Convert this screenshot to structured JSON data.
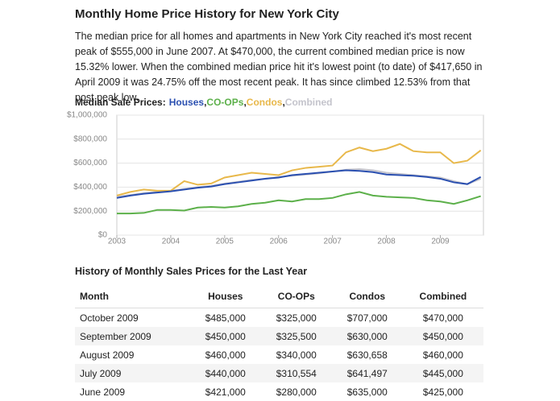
{
  "header": {
    "title": "Monthly Home Price History for New York City",
    "paragraph": "The median price for all homes and apartments in New York City reached it's most recent peak of $555,000 in June 2007. At $470,000, the current combined median price is now 15.32% lower. When the combined median price hit it's lowest point (to date) of $417,650 in April 2009 it was 24.75% off the most recent peak. It has since climbed 12.53% from that post peak low."
  },
  "chart_data": {
    "type": "line",
    "title": "Median Sale Prices:",
    "legend_separator": ",",
    "x": [
      2003,
      2003.25,
      2003.5,
      2003.75,
      2004,
      2004.25,
      2004.5,
      2004.75,
      2005,
      2005.25,
      2005.5,
      2005.75,
      2006,
      2006.25,
      2006.5,
      2006.75,
      2007,
      2007.25,
      2007.5,
      2007.75,
      2008,
      2008.25,
      2008.5,
      2008.75,
      2009,
      2009.25,
      2009.5,
      2009.75
    ],
    "series": [
      {
        "name": "Houses",
        "color": "#2a4fb0",
        "values": [
          310000,
          330000,
          345000,
          355000,
          365000,
          380000,
          395000,
          405000,
          425000,
          440000,
          455000,
          470000,
          480000,
          500000,
          510000,
          520000,
          530000,
          540000,
          535000,
          525000,
          505000,
          500000,
          495000,
          485000,
          470000,
          440000,
          425000,
          485000
        ]
      },
      {
        "name": "CO-OPs",
        "color": "#5cb04a",
        "values": [
          180000,
          180000,
          185000,
          210000,
          210000,
          205000,
          230000,
          235000,
          230000,
          240000,
          260000,
          270000,
          290000,
          280000,
          300000,
          300000,
          310000,
          340000,
          360000,
          330000,
          320000,
          315000,
          310000,
          290000,
          280000,
          260000,
          290000,
          325000
        ]
      },
      {
        "name": "Condos",
        "color": "#e8b84a",
        "values": [
          330000,
          360000,
          380000,
          370000,
          370000,
          450000,
          420000,
          430000,
          480000,
          500000,
          520000,
          510000,
          500000,
          540000,
          560000,
          570000,
          580000,
          690000,
          730000,
          700000,
          720000,
          760000,
          700000,
          690000,
          690000,
          600000,
          620000,
          707000
        ]
      },
      {
        "name": "Combined",
        "color": "#c4c4cc",
        "values": [
          320000,
          335000,
          350000,
          360000,
          370000,
          385000,
          400000,
          410000,
          430000,
          445000,
          460000,
          470000,
          485000,
          495000,
          505000,
          515000,
          530000,
          545000,
          550000,
          540000,
          520000,
          510000,
          500000,
          490000,
          480000,
          450000,
          425000,
          470000
        ]
      }
    ],
    "xlim": [
      2003,
      2009.8
    ],
    "xticks": [
      2003,
      2004,
      2005,
      2006,
      2007,
      2008,
      2009
    ],
    "ylim": [
      0,
      1000000
    ],
    "yticks": [
      {
        "value": 0,
        "label": "$0"
      },
      {
        "value": 200000,
        "label": "$200,000"
      },
      {
        "value": 400000,
        "label": "$400,000"
      },
      {
        "value": 600000,
        "label": "$600,000"
      },
      {
        "value": 800000,
        "label": "$800,000"
      },
      {
        "value": 1000000,
        "label": "$1,000,000"
      }
    ],
    "grid": true
  },
  "table": {
    "title": "History of Monthly Sales Prices for the Last Year",
    "header": [
      "Month",
      "Houses",
      "CO-OPs",
      "Condos",
      "Combined"
    ],
    "rows": [
      [
        "October 2009",
        "$485,000",
        "$325,000",
        "$707,000",
        "$470,000"
      ],
      [
        "September 2009",
        "$450,000",
        "$325,500",
        "$630,000",
        "$450,000"
      ],
      [
        "August 2009",
        "$460,000",
        "$340,000",
        "$630,658",
        "$460,000"
      ],
      [
        "July 2009",
        "$440,000",
        "$310,554",
        "$641,497",
        "$445,000"
      ],
      [
        "June 2009",
        "$421,000",
        "$280,000",
        "$635,000",
        "$425,000"
      ]
    ]
  }
}
